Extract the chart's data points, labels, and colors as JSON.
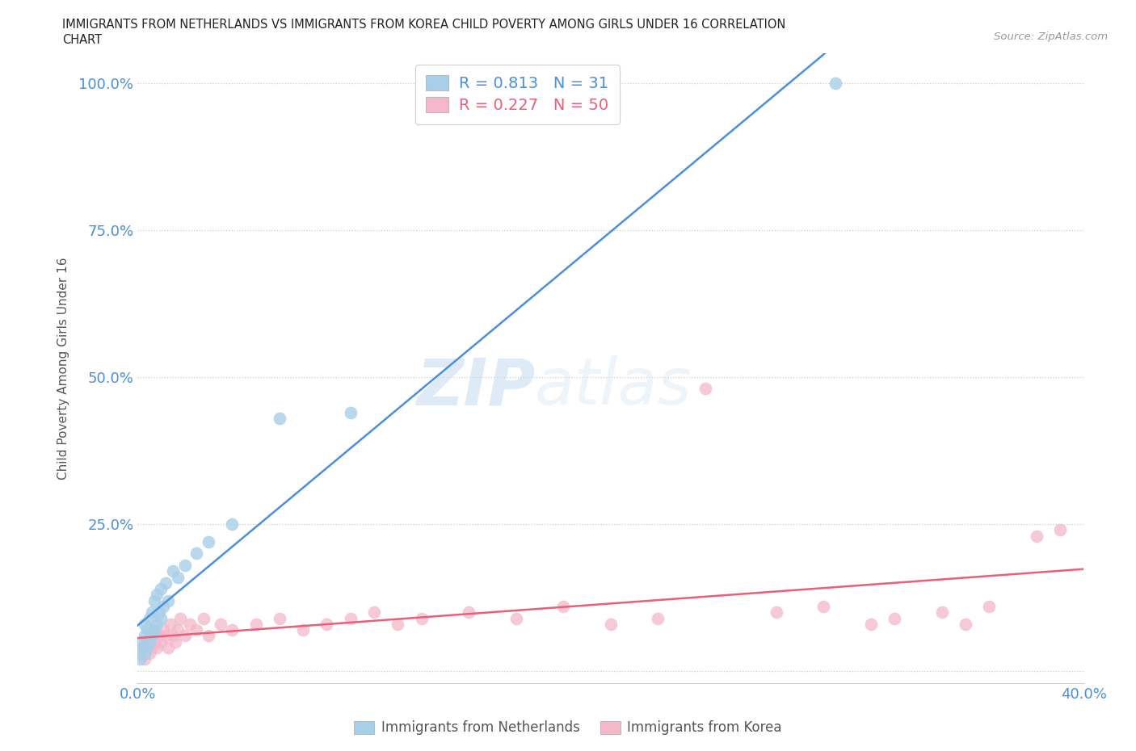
{
  "title_line1": "IMMIGRANTS FROM NETHERLANDS VS IMMIGRANTS FROM KOREA CHILD POVERTY AMONG GIRLS UNDER 16 CORRELATION",
  "title_line2": "CHART",
  "source_text": "Source: ZipAtlas.com",
  "ylabel": "Child Poverty Among Girls Under 16",
  "xlim": [
    0.0,
    0.4
  ],
  "ylim": [
    -0.02,
    1.05
  ],
  "x_ticks": [
    0.0,
    0.1,
    0.2,
    0.3,
    0.4
  ],
  "x_tick_labels": [
    "0.0%",
    "",
    "",
    "",
    "40.0%"
  ],
  "y_ticks": [
    0.0,
    0.25,
    0.5,
    0.75,
    1.0
  ],
  "y_tick_labels": [
    "",
    "25.0%",
    "50.0%",
    "75.0%",
    "100.0%"
  ],
  "netherlands_color": "#a8cfe8",
  "korea_color": "#f4b8ca",
  "netherlands_line_color": "#4a90d9",
  "korea_line_color": "#e8607a",
  "background_color": "#ffffff",
  "watermark_zip": "ZIP",
  "watermark_atlas": "atlas",
  "legend_R_netherlands": "0.813",
  "legend_N_netherlands": "31",
  "legend_R_korea": "0.227",
  "legend_N_korea": "50",
  "netherlands_scatter_x": [
    0.001,
    0.002,
    0.002,
    0.003,
    0.003,
    0.003,
    0.004,
    0.004,
    0.005,
    0.005,
    0.006,
    0.006,
    0.007,
    0.007,
    0.008,
    0.008,
    0.009,
    0.01,
    0.01,
    0.011,
    0.012,
    0.013,
    0.015,
    0.017,
    0.02,
    0.025,
    0.03,
    0.04,
    0.06,
    0.09,
    0.295
  ],
  "netherlands_scatter_y": [
    0.02,
    0.04,
    0.05,
    0.03,
    0.06,
    0.08,
    0.04,
    0.07,
    0.05,
    0.09,
    0.06,
    0.1,
    0.07,
    0.12,
    0.08,
    0.13,
    0.1,
    0.09,
    0.14,
    0.11,
    0.15,
    0.12,
    0.17,
    0.16,
    0.18,
    0.2,
    0.22,
    0.25,
    0.43,
    0.44,
    1.0
  ],
  "korea_scatter_x": [
    0.001,
    0.002,
    0.003,
    0.004,
    0.005,
    0.005,
    0.006,
    0.007,
    0.007,
    0.008,
    0.009,
    0.01,
    0.011,
    0.012,
    0.013,
    0.014,
    0.015,
    0.016,
    0.017,
    0.018,
    0.02,
    0.022,
    0.025,
    0.028,
    0.03,
    0.035,
    0.04,
    0.05,
    0.06,
    0.07,
    0.08,
    0.09,
    0.1,
    0.11,
    0.12,
    0.14,
    0.16,
    0.18,
    0.2,
    0.22,
    0.24,
    0.27,
    0.29,
    0.31,
    0.32,
    0.34,
    0.35,
    0.36,
    0.38,
    0.39
  ],
  "korea_scatter_y": [
    0.03,
    0.04,
    0.02,
    0.05,
    0.03,
    0.06,
    0.04,
    0.05,
    0.07,
    0.04,
    0.06,
    0.05,
    0.07,
    0.06,
    0.04,
    0.08,
    0.06,
    0.05,
    0.07,
    0.09,
    0.06,
    0.08,
    0.07,
    0.09,
    0.06,
    0.08,
    0.07,
    0.08,
    0.09,
    0.07,
    0.08,
    0.09,
    0.1,
    0.08,
    0.09,
    0.1,
    0.09,
    0.11,
    0.08,
    0.09,
    0.48,
    0.1,
    0.11,
    0.08,
    0.09,
    0.1,
    0.08,
    0.11,
    0.23,
    0.24
  ],
  "nl_line_x": [
    0.001,
    0.295
  ],
  "nl_line_y": [
    0.01,
    1.0
  ],
  "ko_line_x": [
    0.001,
    0.39
  ],
  "ko_line_y": [
    0.04,
    0.22
  ]
}
